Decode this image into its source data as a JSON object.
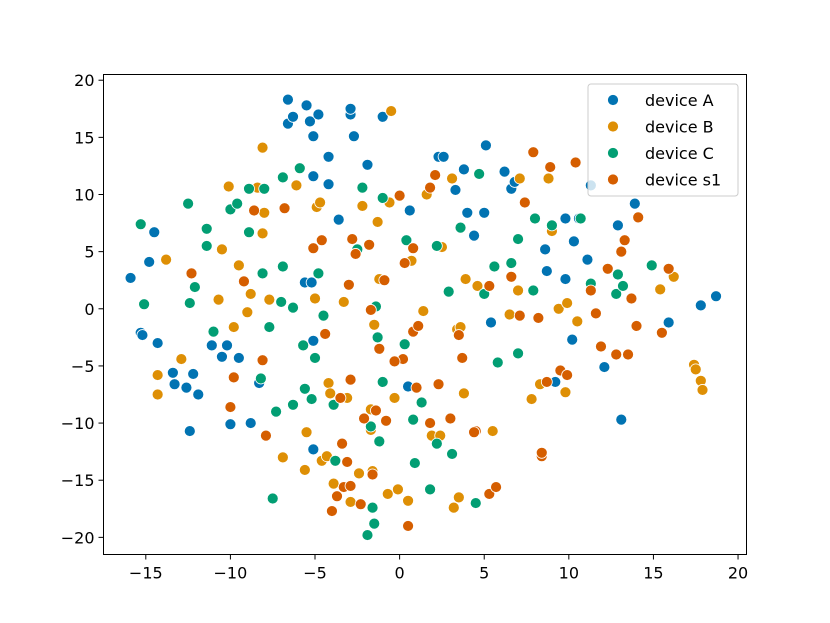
{
  "chart_data": {
    "type": "scatter",
    "title": "",
    "xlabel": "",
    "ylabel": "",
    "xlim": [
      -17.5,
      20.5
    ],
    "ylim": [
      -21.5,
      20.5
    ],
    "xticks": [
      -15,
      -10,
      -5,
      0,
      5,
      10,
      15,
      20
    ],
    "yticks": [
      -20,
      -15,
      -10,
      -5,
      0,
      5,
      10,
      15,
      20
    ],
    "xtick_labels": [
      "−15",
      "−10",
      "−5",
      "0",
      "5",
      "10",
      "15",
      "20"
    ],
    "ytick_labels": [
      "−20",
      "−15",
      "−10",
      "−5",
      "0",
      "5",
      "10",
      "15",
      "20"
    ],
    "grid": false,
    "legend_position": "top-right",
    "series": [
      {
        "name": "device A",
        "color": "#0173b2",
        "points": [
          [
            -15.9,
            2.7
          ],
          [
            -15.3,
            -2.1
          ],
          [
            -15.2,
            -2.3
          ],
          [
            -14.8,
            4.1
          ],
          [
            -14.5,
            6.7
          ],
          [
            -14.3,
            -3.0
          ],
          [
            -13.4,
            -5.6
          ],
          [
            -13.3,
            -6.6
          ],
          [
            -12.6,
            -6.9
          ],
          [
            -12.4,
            -10.7
          ],
          [
            -12.2,
            -5.7
          ],
          [
            -11.9,
            -7.5
          ],
          [
            -11.1,
            -3.2
          ],
          [
            -10.5,
            -4.2
          ],
          [
            -10.2,
            -3.2
          ],
          [
            -10.0,
            -10.1
          ],
          [
            -9.5,
            -4.3
          ],
          [
            -8.8,
            -10.0
          ],
          [
            -8.3,
            -6.5
          ],
          [
            -6.6,
            18.3
          ],
          [
            -6.6,
            16.2
          ],
          [
            -6.3,
            16.8
          ],
          [
            -5.6,
            2.3
          ],
          [
            -5.2,
            2.3
          ],
          [
            -5.5,
            17.8
          ],
          [
            -5.3,
            16.4
          ],
          [
            -5.1,
            15.1
          ],
          [
            -4.8,
            17.0
          ],
          [
            -5.1,
            11.6
          ],
          [
            -5.1,
            -2.8
          ],
          [
            -5.1,
            -12.3
          ],
          [
            -4.2,
            13.3
          ],
          [
            -4.2,
            10.9
          ],
          [
            -3.6,
            7.8
          ],
          [
            -2.9,
            17.0
          ],
          [
            -2.9,
            17.5
          ],
          [
            -2.7,
            15.1
          ],
          [
            -1.9,
            12.6
          ],
          [
            -1.0,
            16.8
          ],
          [
            0.6,
            8.6
          ],
          [
            0.5,
            -6.8
          ],
          [
            2.3,
            13.3
          ],
          [
            2.6,
            13.3
          ],
          [
            3.3,
            10.4
          ],
          [
            3.8,
            12.2
          ],
          [
            4.0,
            8.4
          ],
          [
            4.4,
            6.4
          ],
          [
            5.0,
            8.4
          ],
          [
            5.1,
            14.3
          ],
          [
            5.4,
            -1.2
          ],
          [
            6.2,
            12.0
          ],
          [
            6.6,
            10.5
          ],
          [
            6.8,
            11.1
          ],
          [
            8.6,
            5.2
          ],
          [
            8.7,
            3.3
          ],
          [
            9.2,
            -6.4
          ],
          [
            9.8,
            7.9
          ],
          [
            9.8,
            2.6
          ],
          [
            10.2,
            -2.7
          ],
          [
            10.3,
            5.9
          ],
          [
            10.6,
            7.9
          ],
          [
            11.1,
            4.3
          ],
          [
            11.3,
            10.8
          ],
          [
            12.1,
            -5.1
          ],
          [
            12.9,
            7.3
          ],
          [
            13.1,
            -9.7
          ],
          [
            13.9,
            9.2
          ],
          [
            15.9,
            -1.2
          ],
          [
            17.8,
            0.3
          ],
          [
            18.7,
            1.1
          ]
        ]
      },
      {
        "name": "device B",
        "color": "#de8f05",
        "points": [
          [
            -13.8,
            4.3
          ],
          [
            -14.3,
            -5.8
          ],
          [
            -14.3,
            -7.5
          ],
          [
            -12.9,
            -4.4
          ],
          [
            -10.7,
            0.8
          ],
          [
            -10.5,
            5.2
          ],
          [
            -10.1,
            10.7
          ],
          [
            -9.8,
            -1.6
          ],
          [
            -9.5,
            3.8
          ],
          [
            -9.0,
            -0.3
          ],
          [
            -8.8,
            1.3
          ],
          [
            -8.4,
            10.6
          ],
          [
            -8.1,
            6.6
          ],
          [
            -8.1,
            14.1
          ],
          [
            -8.0,
            8.4
          ],
          [
            -7.7,
            0.8
          ],
          [
            -6.9,
            -13.0
          ],
          [
            -6.1,
            10.8
          ],
          [
            -5.6,
            -14.1
          ],
          [
            -5.5,
            -10.8
          ],
          [
            -5.0,
            0.9
          ],
          [
            -4.9,
            8.9
          ],
          [
            -4.7,
            9.3
          ],
          [
            -4.6,
            -13.3
          ],
          [
            -4.3,
            -12.9
          ],
          [
            -4.2,
            -6.5
          ],
          [
            -4.1,
            -7.4
          ],
          [
            -3.9,
            -15.3
          ],
          [
            -3.3,
            0.6
          ],
          [
            -3.1,
            -7.8
          ],
          [
            -2.9,
            -16.9
          ],
          [
            -2.4,
            -14.4
          ],
          [
            -2.2,
            9.0
          ],
          [
            -1.7,
            -8.8
          ],
          [
            -1.7,
            -10.6
          ],
          [
            -1.6,
            -14.2
          ],
          [
            -1.3,
            7.6
          ],
          [
            -1.2,
            2.6
          ],
          [
            -1.5,
            -1.4
          ],
          [
            -0.7,
            -16.2
          ],
          [
            -0.6,
            9.3
          ],
          [
            -0.3,
            -7.8
          ],
          [
            -0.1,
            -15.8
          ],
          [
            0.5,
            -16.8
          ],
          [
            0.7,
            4.2
          ],
          [
            1.4,
            -0.2
          ],
          [
            1.6,
            10.0
          ],
          [
            1.9,
            -11.1
          ],
          [
            2.4,
            -11.1
          ],
          [
            2.5,
            5.4
          ],
          [
            3.1,
            11.4
          ],
          [
            3.2,
            -17.4
          ],
          [
            3.4,
            -1.8
          ],
          [
            3.5,
            -16.5
          ],
          [
            3.6,
            -1.6
          ],
          [
            3.8,
            -7.4
          ],
          [
            3.9,
            2.6
          ],
          [
            4.6,
            2.0
          ],
          [
            5.5,
            -10.7
          ],
          [
            6.5,
            -0.5
          ],
          [
            7.0,
            1.6
          ],
          [
            7.1,
            11.4
          ],
          [
            7.8,
            -7.9
          ],
          [
            8.3,
            -6.6
          ],
          [
            8.8,
            11.4
          ],
          [
            9.0,
            6.8
          ],
          [
            9.4,
            0.0
          ],
          [
            9.9,
            0.5
          ],
          [
            9.8,
            -7.3
          ],
          [
            10.5,
            -1.1
          ],
          [
            15.4,
            1.7
          ],
          [
            16.2,
            2.8
          ],
          [
            17.4,
            -4.9
          ],
          [
            17.5,
            -5.3
          ],
          [
            17.8,
            -6.3
          ],
          [
            17.9,
            -7.1
          ],
          [
            -0.5,
            17.3
          ]
        ]
      },
      {
        "name": "device C",
        "color": "#029e73",
        "points": [
          [
            -15.3,
            7.4
          ],
          [
            -15.1,
            0.4
          ],
          [
            -12.5,
            9.2
          ],
          [
            -12.4,
            0.5
          ],
          [
            -12.1,
            1.9
          ],
          [
            -11.4,
            7.0
          ],
          [
            -11.4,
            5.5
          ],
          [
            -11.0,
            -2.0
          ],
          [
            -10.0,
            8.7
          ],
          [
            -9.6,
            9.2
          ],
          [
            -8.9,
            6.7
          ],
          [
            -8.9,
            10.5
          ],
          [
            -8.2,
            -6.1
          ],
          [
            -8.1,
            3.1
          ],
          [
            -8.0,
            10.5
          ],
          [
            -7.7,
            -1.6
          ],
          [
            -7.5,
            -16.6
          ],
          [
            -7.3,
            -9.0
          ],
          [
            -7.0,
            0.6
          ],
          [
            -6.9,
            3.7
          ],
          [
            -6.9,
            11.5
          ],
          [
            -6.3,
            0.1
          ],
          [
            -6.3,
            -8.4
          ],
          [
            -5.9,
            12.3
          ],
          [
            -5.7,
            -3.2
          ],
          [
            -5.6,
            -7.0
          ],
          [
            -5.2,
            -7.9
          ],
          [
            -5.0,
            -4.3
          ],
          [
            -4.8,
            3.1
          ],
          [
            -4.6,
            6.0
          ],
          [
            -4.5,
            -0.6
          ],
          [
            -3.9,
            -8.4
          ],
          [
            -3.8,
            -13.3
          ],
          [
            -2.5,
            5.2
          ],
          [
            -2.2,
            10.6
          ],
          [
            -1.9,
            -19.8
          ],
          [
            -1.7,
            -10.3
          ],
          [
            -1.6,
            -17.4
          ],
          [
            -1.5,
            -18.8
          ],
          [
            -1.4,
            0.2
          ],
          [
            -1.3,
            -2.5
          ],
          [
            -1.2,
            -11.6
          ],
          [
            -1.0,
            -6.4
          ],
          [
            -1.0,
            9.7
          ],
          [
            0.3,
            -3.1
          ],
          [
            0.4,
            6.0
          ],
          [
            0.8,
            -9.7
          ],
          [
            0.9,
            -13.5
          ],
          [
            1.3,
            -8.2
          ],
          [
            1.8,
            -15.8
          ],
          [
            2.2,
            -11.8
          ],
          [
            2.2,
            5.5
          ],
          [
            2.9,
            1.5
          ],
          [
            3.1,
            -12.7
          ],
          [
            3.6,
            7.1
          ],
          [
            4.5,
            -17.0
          ],
          [
            4.7,
            11.8
          ],
          [
            5.0,
            1.3
          ],
          [
            5.6,
            3.7
          ],
          [
            5.8,
            -4.7
          ],
          [
            6.6,
            4.0
          ],
          [
            7.0,
            -3.9
          ],
          [
            7.0,
            6.1
          ],
          [
            7.9,
            1.6
          ],
          [
            8.0,
            7.9
          ],
          [
            9.0,
            7.3
          ],
          [
            10.7,
            7.9
          ],
          [
            11.3,
            2.2
          ],
          [
            12.8,
            1.3
          ],
          [
            12.9,
            3.0
          ],
          [
            13.2,
            2.0
          ],
          [
            14.9,
            3.8
          ]
        ]
      },
      {
        "name": "device s1",
        "color": "#d55e00",
        "points": [
          [
            -12.3,
            3.1
          ],
          [
            -9.8,
            -6.0
          ],
          [
            -10.0,
            -8.6
          ],
          [
            -9.2,
            2.4
          ],
          [
            -8.6,
            8.6
          ],
          [
            -7.9,
            -11.1
          ],
          [
            -8.1,
            -4.5
          ],
          [
            -6.8,
            8.8
          ],
          [
            -5.1,
            5.3
          ],
          [
            -4.6,
            6.0
          ],
          [
            -4.4,
            -2.2
          ],
          [
            -3.5,
            -7.8
          ],
          [
            -3.4,
            -11.8
          ],
          [
            -3.3,
            -15.6
          ],
          [
            -3.1,
            -13.4
          ],
          [
            -2.9,
            -15.5
          ],
          [
            -2.8,
            6.1
          ],
          [
            -2.6,
            4.8
          ],
          [
            -2.1,
            -9.6
          ],
          [
            -1.8,
            5.6
          ],
          [
            -1.7,
            -0.1
          ],
          [
            -1.6,
            -14.5
          ],
          [
            -1.4,
            -8.9
          ],
          [
            -1.2,
            -3.5
          ],
          [
            -0.9,
            2.5
          ],
          [
            0.0,
            9.9
          ],
          [
            0.3,
            4.0
          ],
          [
            0.8,
            5.3
          ],
          [
            0.8,
            -2.0
          ],
          [
            1.1,
            -1.5
          ],
          [
            1.8,
            10.6
          ],
          [
            2.1,
            11.7
          ],
          [
            2.3,
            -6.6
          ],
          [
            3.0,
            -9.6
          ],
          [
            3.5,
            -2.3
          ],
          [
            3.7,
            -4.3
          ],
          [
            4.5,
            -10.7
          ],
          [
            5.3,
            -16.2
          ],
          [
            5.7,
            -15.6
          ],
          [
            6.6,
            2.8
          ],
          [
            7.1,
            -0.6
          ],
          [
            7.4,
            9.3
          ],
          [
            7.9,
            13.7
          ],
          [
            8.2,
            -0.8
          ],
          [
            8.4,
            -12.9
          ],
          [
            8.7,
            -6.4
          ],
          [
            8.9,
            12.4
          ],
          [
            9.5,
            -5.4
          ],
          [
            9.9,
            -5.8
          ],
          [
            10.4,
            12.8
          ],
          [
            11.3,
            1.6
          ],
          [
            11.6,
            -0.4
          ],
          [
            12.3,
            3.5
          ],
          [
            12.8,
            -4.0
          ],
          [
            13.1,
            5.0
          ],
          [
            13.3,
            6.0
          ],
          [
            13.5,
            -4.0
          ],
          [
            13.7,
            0.9
          ],
          [
            14.0,
            -1.5
          ],
          [
            14.1,
            8.0
          ],
          [
            15.5,
            -2.1
          ],
          [
            15.9,
            3.5
          ],
          [
            -3.0,
            2.1
          ],
          [
            0.2,
            -4.4
          ],
          [
            -0.3,
            -4.6
          ],
          [
            4.4,
            -10.8
          ],
          [
            8.4,
            -12.6
          ],
          [
            -2.3,
            -17.1
          ],
          [
            0.5,
            -19.0
          ],
          [
            -4.0,
            -17.7
          ],
          [
            -2.9,
            -6.2
          ],
          [
            1.8,
            -10.0
          ],
          [
            11.9,
            -3.3
          ],
          [
            -3.7,
            -16.4
          ],
          [
            -0.8,
            -9.8
          ],
          [
            1.0,
            -6.9
          ],
          [
            5.3,
            2.0
          ]
        ]
      }
    ]
  }
}
